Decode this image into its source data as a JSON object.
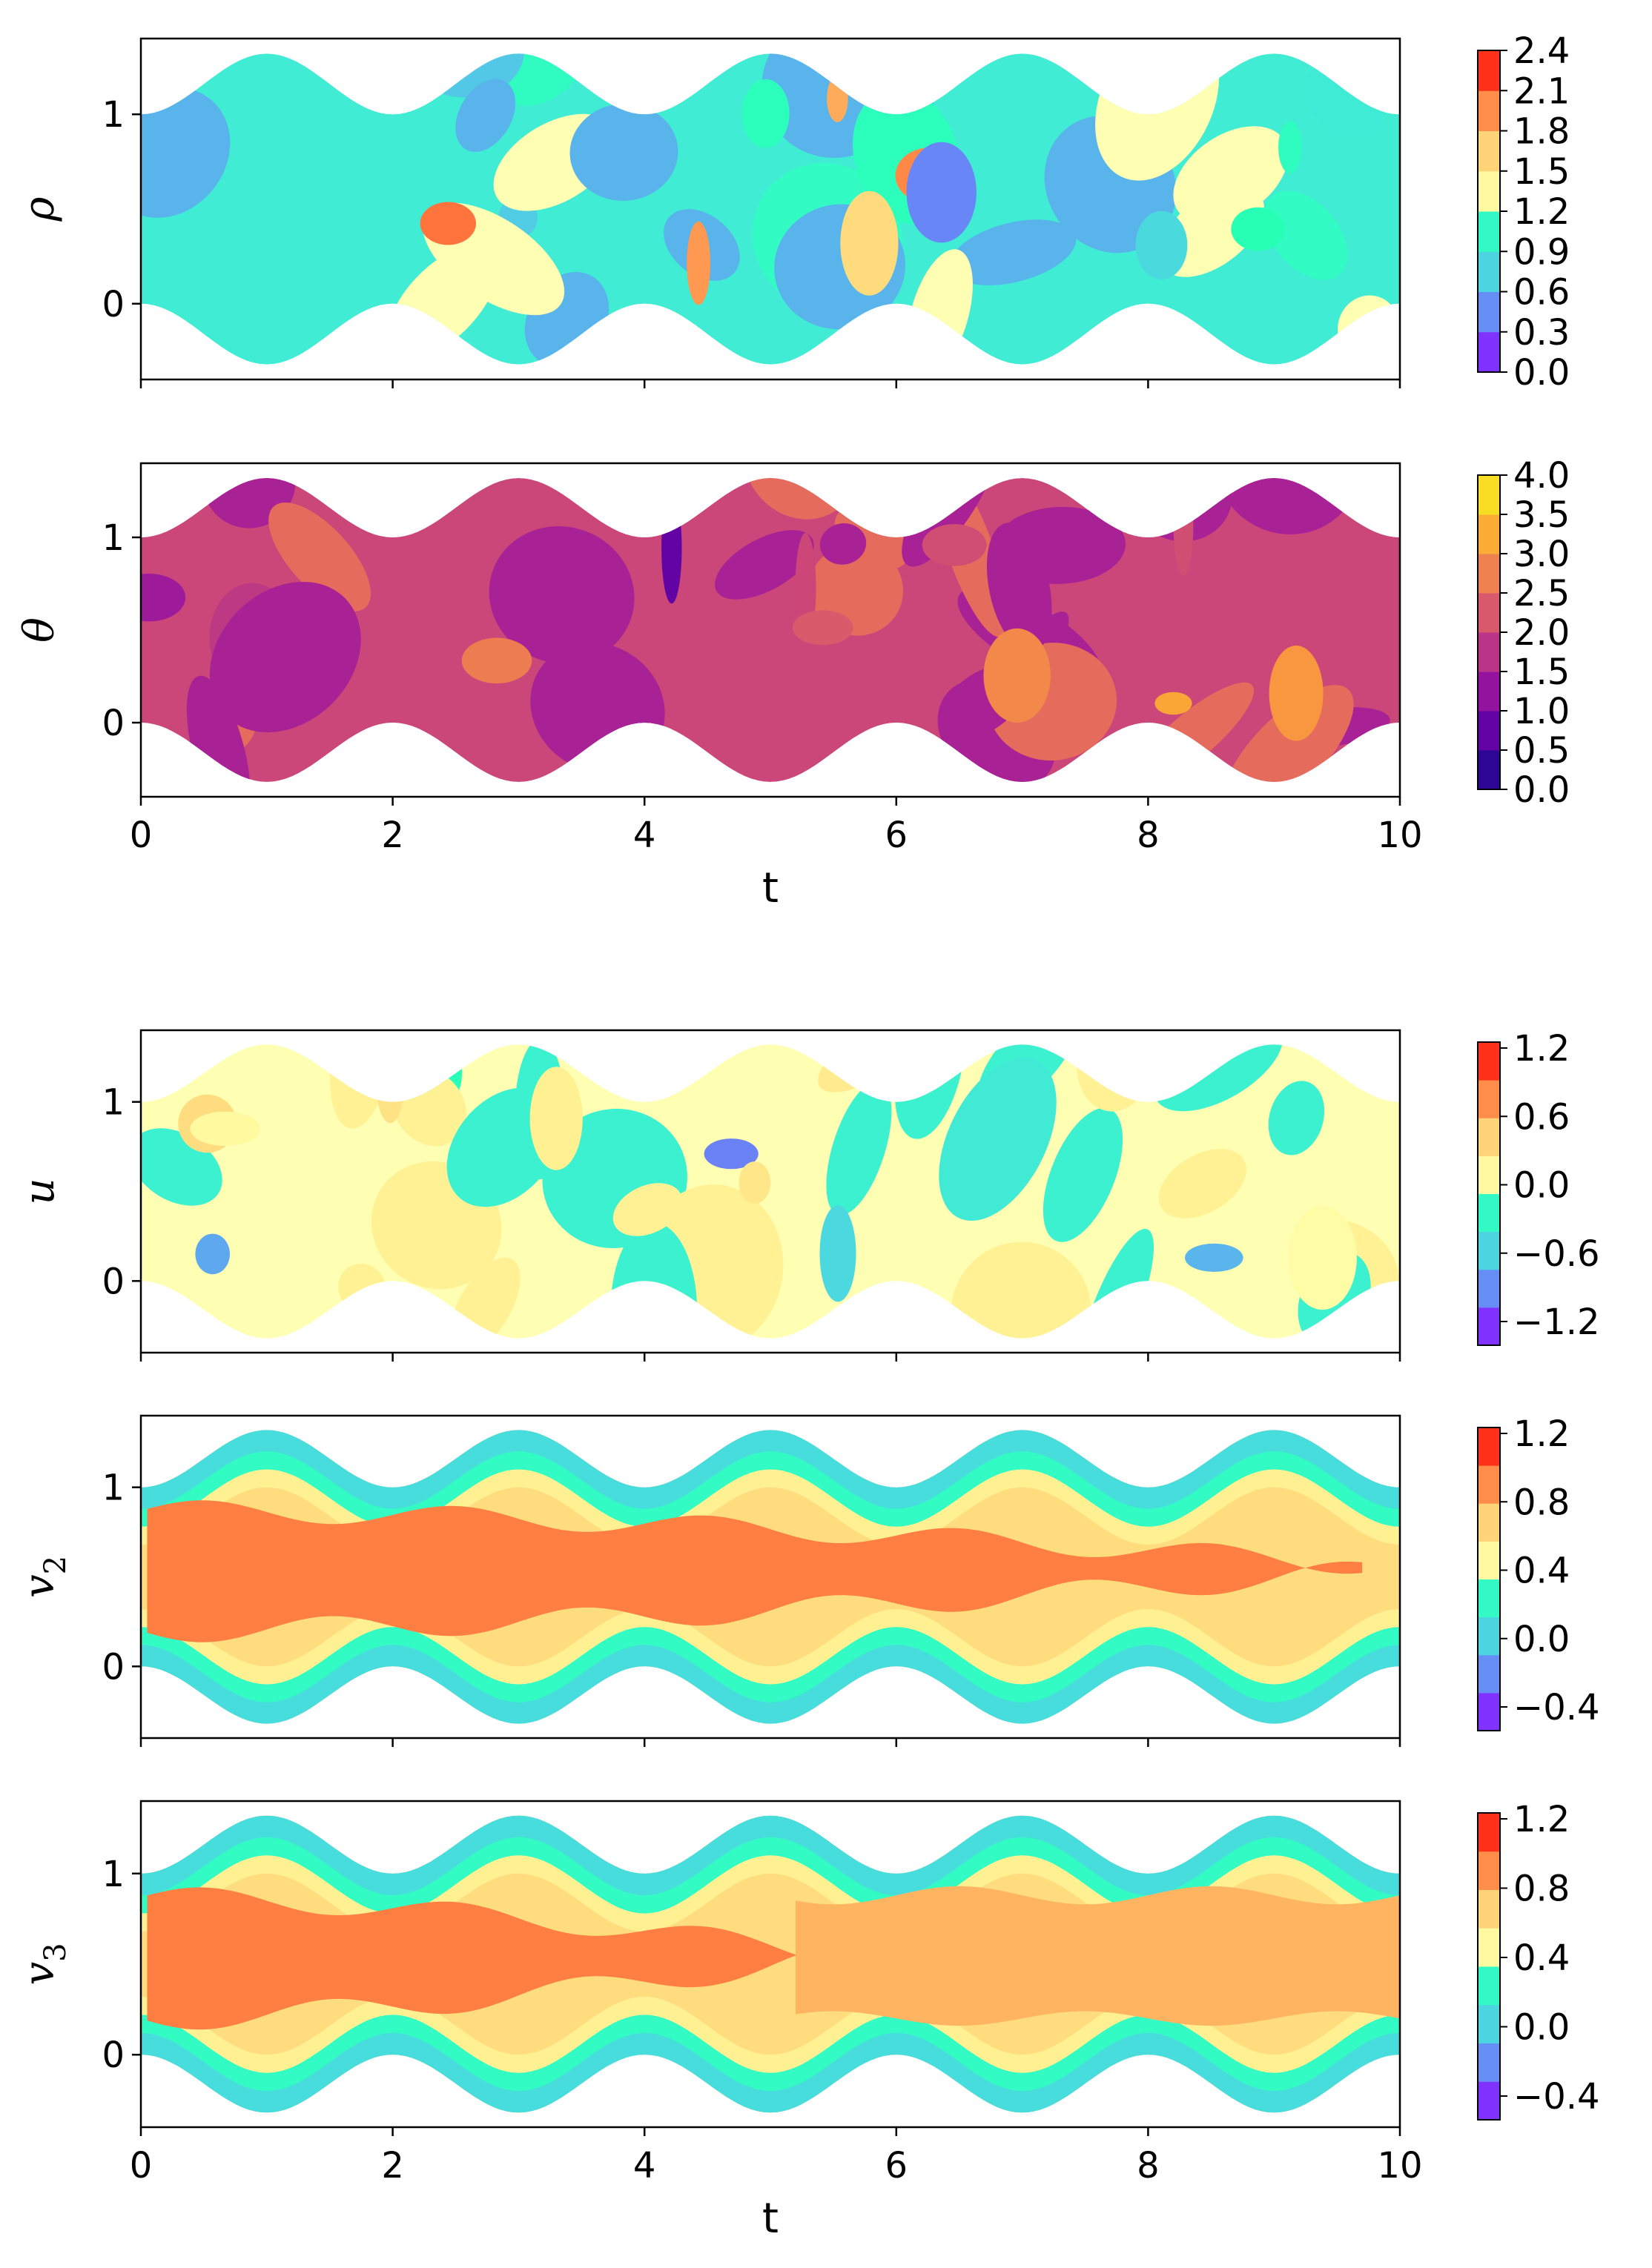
{
  "chart_data": [
    {
      "type": "heatmap",
      "ylabel": "ρ",
      "xlim": [
        0,
        10
      ],
      "ylim": [
        -0.4,
        1.4
      ],
      "yticks": [
        "0",
        "1"
      ],
      "xticks": [],
      "colorbar_ticks": [
        "0.0",
        "0.3",
        "0.6",
        "0.9",
        "1.2",
        "1.5",
        "1.8",
        "2.1",
        "2.4"
      ],
      "colorbar_range": [
        0,
        2.4
      ],
      "colormap": "rainbow",
      "dominant_levels": [
        0.9,
        0.6,
        1.2
      ],
      "flow_sign": 1,
      "seed": 1
    },
    {
      "type": "heatmap",
      "ylabel": "θ",
      "xlim": [
        0,
        10
      ],
      "ylim": [
        -0.4,
        1.4
      ],
      "yticks": [
        "0",
        "1"
      ],
      "xticks": [
        "0",
        "2",
        "4",
        "6",
        "8",
        "10"
      ],
      "xlabel": "t",
      "colorbar_ticks": [
        "0.0",
        "0.5",
        "1.0",
        "1.5",
        "2.0",
        "2.5",
        "3.0",
        "3.5",
        "4.0"
      ],
      "colorbar_range": [
        0,
        4
      ],
      "colormap": "plasma",
      "dominant_levels": [
        2.0,
        1.5,
        2.5
      ],
      "flow_sign": 0,
      "seed": 2
    },
    {
      "type": "heatmap",
      "ylabel": "u",
      "xlim": [
        0,
        10
      ],
      "ylim": [
        -0.4,
        1.4
      ],
      "yticks": [
        "0",
        "1"
      ],
      "xticks": [],
      "colorbar_ticks": [
        "1.2",
        "0.6",
        "0.0",
        "−0.6",
        "−1.2"
      ],
      "colorbar_range": [
        -1.4,
        1.4
      ],
      "colormap": "rainbow",
      "dominant_levels": [
        0.0,
        0.3,
        -0.3
      ],
      "flow_sign": 0,
      "seed": 3
    },
    {
      "type": "heatmap",
      "ylabel": "v2",
      "ylabel_base": "v",
      "ylabel_sub": "2",
      "xlim": [
        0,
        10
      ],
      "ylim": [
        -0.4,
        1.4
      ],
      "yticks": [
        "0",
        "1"
      ],
      "xticks": [],
      "colorbar_ticks": [
        "1.2",
        "0.8",
        "0.4",
        "0.0",
        "−0.4"
      ],
      "colorbar_range": [
        -0.6,
        1.2
      ],
      "colormap": "rainbow",
      "dominant_levels": [
        0.8,
        0.6,
        0.2
      ],
      "flow_sign": 2,
      "seed": 4
    },
    {
      "type": "heatmap",
      "ylabel": "v3",
      "ylabel_base": "v",
      "ylabel_sub": "3",
      "xlim": [
        0,
        10
      ],
      "ylim": [
        -0.4,
        1.4
      ],
      "yticks": [
        "0",
        "1"
      ],
      "xticks": [
        "0",
        "2",
        "4",
        "6",
        "8",
        "10"
      ],
      "xlabel": "t",
      "colorbar_ticks": [
        "1.2",
        "0.8",
        "0.4",
        "0.0",
        "−0.4"
      ],
      "colorbar_range": [
        -0.6,
        1.2
      ],
      "colormap": "rainbow",
      "dominant_levels": [
        0.8,
        0.6,
        0.2
      ],
      "flow_sign": 3,
      "seed": 5
    }
  ]
}
